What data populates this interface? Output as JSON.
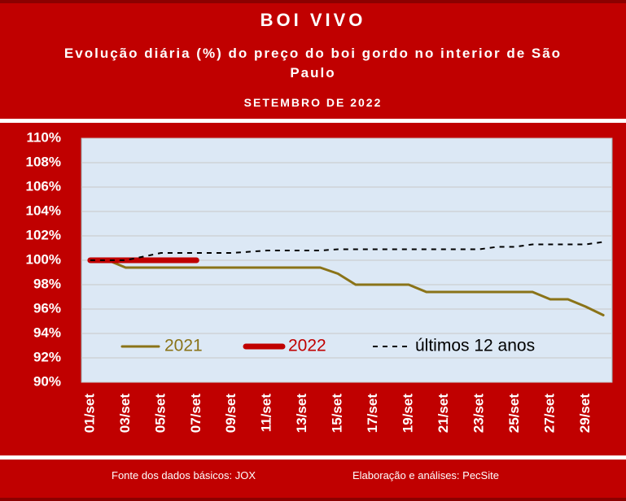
{
  "header": {
    "title": "BOI VIVO",
    "subtitle": "Evolução diária (%) do preço do boi gordo no interior de São Paulo",
    "period": "SETEMBRO DE 2022"
  },
  "chart_data": {
    "type": "line",
    "categories": [
      "01/set",
      null,
      "03/set",
      null,
      "05/set",
      null,
      "07/set",
      null,
      "09/set",
      null,
      "11/set",
      null,
      "13/set",
      null,
      "15/set",
      null,
      "17/set",
      null,
      "19/set",
      null,
      "21/set",
      null,
      "23/set",
      null,
      "25/set",
      null,
      "27/set",
      null,
      "29/set",
      null
    ],
    "series": [
      {
        "name": "2021",
        "color": "#8a7318",
        "width": 3,
        "dash": false,
        "values": [
          100,
          100,
          99.4,
          99.4,
          99.4,
          99.4,
          99.4,
          99.4,
          99.4,
          99.4,
          99.4,
          99.4,
          99.4,
          99.4,
          98.9,
          98.0,
          98.0,
          98.0,
          98.0,
          97.4,
          97.4,
          97.4,
          97.4,
          97.4,
          97.4,
          97.4,
          96.8,
          96.8,
          96.2,
          95.5
        ]
      },
      {
        "name": "2022",
        "color": "#c00000",
        "width": 7,
        "dash": false,
        "values": [
          100,
          100,
          100,
          100,
          100,
          100,
          100,
          null,
          null,
          null,
          null,
          null,
          null,
          null,
          null,
          null,
          null,
          null,
          null,
          null,
          null,
          null,
          null,
          null,
          null,
          null,
          null,
          null,
          null,
          null
        ]
      },
      {
        "name": "últimos 12 anos",
        "color": "#000000",
        "width": 2,
        "dash": true,
        "values": [
          100,
          100,
          100,
          100.3,
          100.6,
          100.6,
          100.6,
          100.6,
          100.6,
          100.7,
          100.8,
          100.8,
          100.8,
          100.8,
          100.9,
          100.9,
          100.9,
          100.9,
          100.9,
          100.9,
          100.9,
          100.9,
          100.9,
          101.1,
          101.1,
          101.3,
          101.3,
          101.3,
          101.3,
          101.5
        ]
      }
    ],
    "ylim": [
      90,
      110
    ],
    "yticks": [
      {
        "value": 90,
        "label": "90%"
      },
      {
        "value": 92,
        "label": "92%"
      },
      {
        "value": 94,
        "label": "94%"
      },
      {
        "value": 96,
        "label": "96%"
      },
      {
        "value": 98,
        "label": "98%"
      },
      {
        "value": 100,
        "label": "100%"
      },
      {
        "value": 102,
        "label": "102%"
      },
      {
        "value": 104,
        "label": "104%"
      },
      {
        "value": 106,
        "label": "106%"
      },
      {
        "value": 108,
        "label": "108%"
      },
      {
        "value": 110,
        "label": "110%"
      }
    ],
    "grid": true,
    "legend": "lower center"
  },
  "footer": {
    "source": "Fonte dos dados básicos: JOX",
    "credit": "Elaboração e análises: PecSite"
  }
}
